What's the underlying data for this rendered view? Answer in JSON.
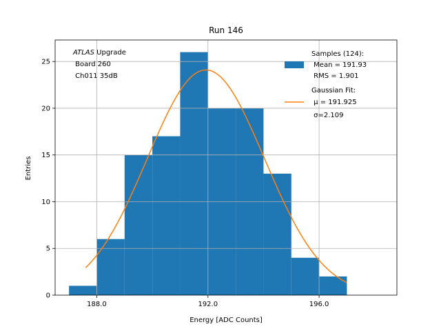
{
  "chart_data": {
    "type": "bar",
    "title": "Run 146",
    "xlabel": "Energy [ADC Counts]",
    "ylabel": "Entries",
    "xlim": [
      186.5,
      198.8
    ],
    "ylim": [
      0,
      27.3
    ],
    "grid": true,
    "x_ticks": [
      188.0,
      192.0,
      196.0
    ],
    "x_tick_labels": [
      "188.0",
      "192.0",
      "196.0"
    ],
    "y_ticks": [
      0,
      5,
      10,
      15,
      20,
      25
    ],
    "y_tick_labels": [
      "0",
      "5",
      "10",
      "15",
      "20",
      "25"
    ],
    "bin_edges": [
      187,
      188,
      189,
      190,
      191,
      192,
      193,
      194,
      195,
      196,
      197
    ],
    "values": [
      1,
      6,
      15,
      17,
      26,
      20,
      20,
      13,
      4,
      2
    ],
    "bar_color": "#1f77b4",
    "fit": {
      "type": "gaussian",
      "mu": 191.925,
      "sigma": 2.109,
      "amplitude": 24.1,
      "x_range": [
        187.6,
        197.0
      ],
      "color": "#ff7f0e"
    },
    "annotation": {
      "italic": "ATLAS",
      "line1_rest": " Upgrade",
      "line2": " Board 260",
      "line3": " Ch011 35dB"
    },
    "legend": {
      "position": "top-right",
      "samples": {
        "line1": "Samples (124):",
        "line2": " Mean = 191.93",
        "line3": " RMS = 1.901"
      },
      "fit": {
        "line1": "Gaussian Fit:",
        "line2": " μ = 191.925",
        "line3": " σ=2.109"
      }
    }
  }
}
